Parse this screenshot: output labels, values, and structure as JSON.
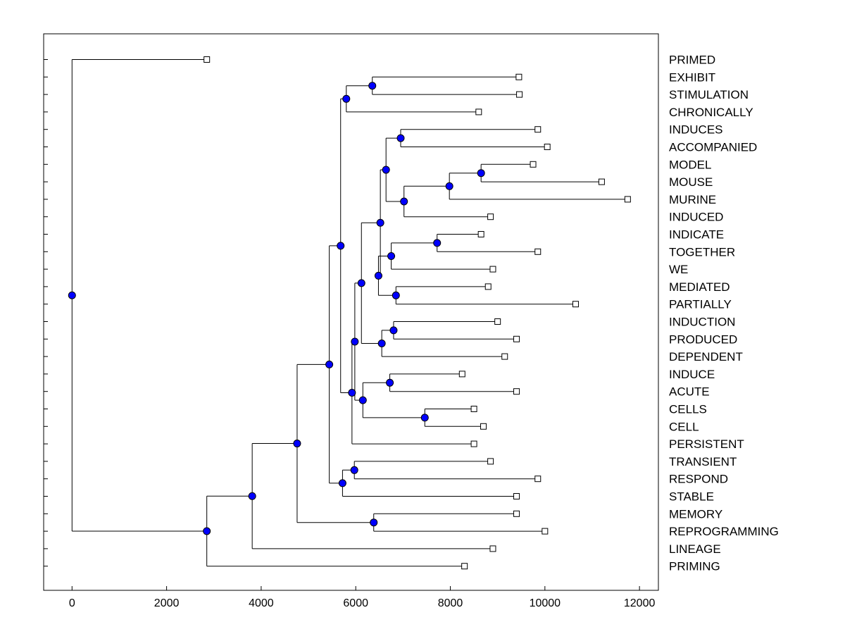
{
  "chart_data": {
    "type": "dendrogram",
    "title": "",
    "xlabel": "",
    "ylabel": "",
    "xlim": [
      -600,
      12400
    ],
    "x_ticks": [
      0,
      2000,
      4000,
      6000,
      8000,
      10000,
      12000
    ],
    "x_tick_labels": [
      "0",
      "2000",
      "4000",
      "6000",
      "8000",
      "10000",
      "12000"
    ],
    "node_color": "#0000ff",
    "leaves": [
      {
        "label": "PRIMED",
        "x": 2850
      },
      {
        "label": "EXHIBIT",
        "x": 9450
      },
      {
        "label": "STIMULATION",
        "x": 9460
      },
      {
        "label": "CHRONICALLY",
        "x": 8600
      },
      {
        "label": "INDUCES",
        "x": 9850
      },
      {
        "label": "ACCOMPANIED",
        "x": 10050
      },
      {
        "label": "MODEL",
        "x": 9750
      },
      {
        "label": "MOUSE",
        "x": 11200
      },
      {
        "label": "MURINE",
        "x": 11750
      },
      {
        "label": "INDUCED",
        "x": 8850
      },
      {
        "label": "INDICATE",
        "x": 8650
      },
      {
        "label": "TOGETHER",
        "x": 9850
      },
      {
        "label": "WE",
        "x": 8900
      },
      {
        "label": "MEDIATED",
        "x": 8800
      },
      {
        "label": "PARTIALLY",
        "x": 10650
      },
      {
        "label": "INDUCTION",
        "x": 9000
      },
      {
        "label": "PRODUCED",
        "x": 9400
      },
      {
        "label": "DEPENDENT",
        "x": 9150
      },
      {
        "label": "INDUCE",
        "x": 8250
      },
      {
        "label": "ACUTE",
        "x": 9400
      },
      {
        "label": "CELLS",
        "x": 8500
      },
      {
        "label": "CELL",
        "x": 8700
      },
      {
        "label": "PERSISTENT",
        "x": 8500
      },
      {
        "label": "TRANSIENT",
        "x": 8850
      },
      {
        "label": "RESPOND",
        "x": 9850
      },
      {
        "label": "STABLE",
        "x": 9400
      },
      {
        "label": "MEMORY",
        "x": 9400
      },
      {
        "label": "REPROGRAMMING",
        "x": 10000
      },
      {
        "label": "LINEAGE",
        "x": 8900
      },
      {
        "label": "PRIMING",
        "x": 8300
      }
    ],
    "merges": [
      {
        "id": "m1",
        "x": 6350,
        "children": [
          "EXHIBIT",
          "STIMULATION"
        ]
      },
      {
        "id": "m2",
        "x": 5800,
        "children": [
          "m1",
          "CHRONICALLY"
        ]
      },
      {
        "id": "m3",
        "x": 6950,
        "children": [
          "INDUCES",
          "ACCOMPANIED"
        ]
      },
      {
        "id": "m4",
        "x": 8650,
        "children": [
          "MODEL",
          "MOUSE"
        ]
      },
      {
        "id": "m5",
        "x": 7980,
        "children": [
          "m4",
          "MURINE"
        ]
      },
      {
        "id": "m6",
        "x": 7020,
        "children": [
          "m5",
          "INDUCED"
        ]
      },
      {
        "id": "m7",
        "x": 6640,
        "children": [
          "m3",
          "m6"
        ]
      },
      {
        "id": "m8",
        "x": 7720,
        "children": [
          "INDICATE",
          "TOGETHER"
        ]
      },
      {
        "id": "m9",
        "x": 6750,
        "children": [
          "m8",
          "WE"
        ]
      },
      {
        "id": "m10",
        "x": 6850,
        "children": [
          "MEDIATED",
          "PARTIALLY"
        ]
      },
      {
        "id": "m11",
        "x": 6480,
        "children": [
          "m9",
          "m10"
        ]
      },
      {
        "id": "m12",
        "x": 6520,
        "children": [
          "m7",
          "m11"
        ]
      },
      {
        "id": "m13",
        "x": 6800,
        "children": [
          "INDUCTION",
          "PRODUCED"
        ]
      },
      {
        "id": "m14",
        "x": 6550,
        "children": [
          "m13",
          "DEPENDENT"
        ]
      },
      {
        "id": "m15",
        "x": 6120,
        "children": [
          "m12",
          "m14"
        ]
      },
      {
        "id": "m16",
        "x": 6720,
        "children": [
          "INDUCE",
          "ACUTE"
        ]
      },
      {
        "id": "m17",
        "x": 7460,
        "children": [
          "CELLS",
          "CELL"
        ]
      },
      {
        "id": "m18",
        "x": 6150,
        "children": [
          "m16",
          "m17"
        ]
      },
      {
        "id": "m19",
        "x": 5980,
        "children": [
          "m15",
          "m18"
        ]
      },
      {
        "id": "m20",
        "x": 5920,
        "children": [
          "m19",
          "PERSISTENT"
        ]
      },
      {
        "id": "m21",
        "x": 5680,
        "children": [
          "m2",
          "m20"
        ]
      },
      {
        "id": "m22",
        "x": 5970,
        "children": [
          "TRANSIENT",
          "RESPOND"
        ]
      },
      {
        "id": "m23",
        "x": 5720,
        "children": [
          "m22",
          "STABLE"
        ]
      },
      {
        "id": "m24",
        "x": 5440,
        "children": [
          "m21",
          "m23"
        ]
      },
      {
        "id": "m25",
        "x": 6380,
        "children": [
          "MEMORY",
          "REPROGRAMMING"
        ]
      },
      {
        "id": "m26",
        "x": 4760,
        "children": [
          "m24",
          "m25"
        ]
      },
      {
        "id": "m27",
        "x": 3810,
        "children": [
          "m26",
          "LINEAGE"
        ]
      },
      {
        "id": "m28",
        "x": 2850,
        "children": [
          "m27",
          "PRIMING"
        ]
      },
      {
        "id": "m29",
        "x": 0,
        "children": [
          "PRIMED",
          "m28"
        ]
      }
    ]
  }
}
